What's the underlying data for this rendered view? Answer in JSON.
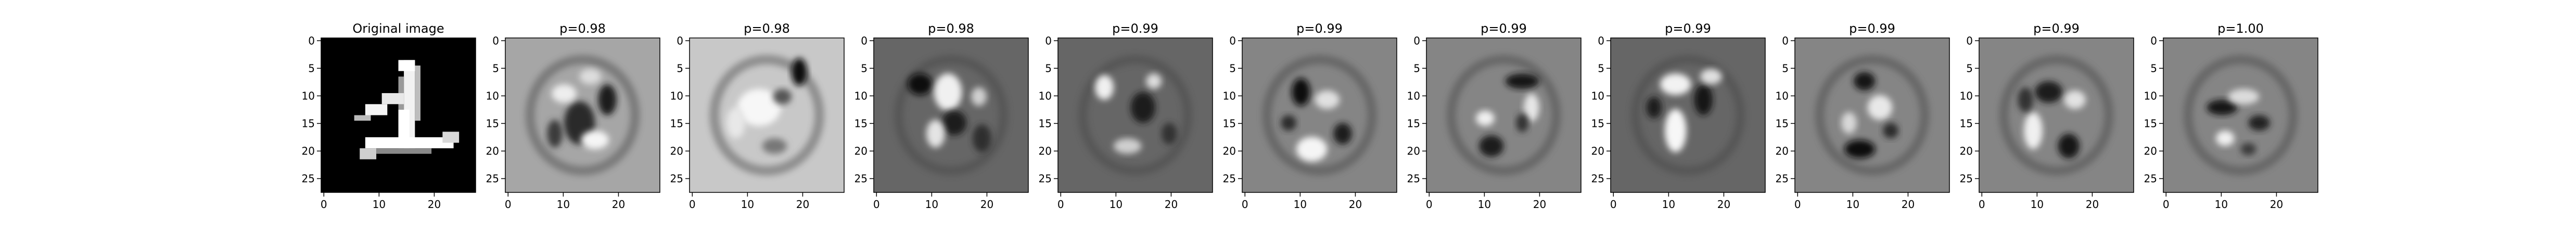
{
  "chart_data": {
    "type": "heatmap",
    "x_ticks": [
      0,
      10,
      20
    ],
    "y_ticks": [
      0,
      5,
      10,
      15,
      20,
      25
    ],
    "extent": [
      0,
      27
    ],
    "panels": [
      {
        "title": "Original image",
        "kind": "digit",
        "digit": "1"
      },
      {
        "title": "p=0.98",
        "kind": "pattern",
        "shade": "light-gray",
        "shape": "blob"
      },
      {
        "title": "p=0.98",
        "kind": "pattern",
        "shade": "pale-gray",
        "shape": "ring"
      },
      {
        "title": "p=0.98",
        "kind": "pattern",
        "shade": "dark-gray",
        "shape": "diagonal"
      },
      {
        "title": "p=0.99",
        "kind": "pattern",
        "shade": "dark-gray",
        "shape": "three"
      },
      {
        "title": "p=0.99",
        "kind": "pattern",
        "shade": "mid-gray",
        "shape": "six"
      },
      {
        "title": "p=0.99",
        "kind": "pattern",
        "shade": "mid-gray",
        "shape": "seven"
      },
      {
        "title": "p=0.99",
        "kind": "pattern",
        "shade": "dark-gray",
        "shape": "loop"
      },
      {
        "title": "p=0.99",
        "kind": "pattern",
        "shade": "mid-gray",
        "shape": "eight"
      },
      {
        "title": "p=0.99",
        "kind": "pattern",
        "shade": "mid-gray",
        "shape": "swirl"
      },
      {
        "title": "p=1.00",
        "kind": "pattern",
        "shade": "mid-gray",
        "shape": "stroke"
      }
    ]
  }
}
